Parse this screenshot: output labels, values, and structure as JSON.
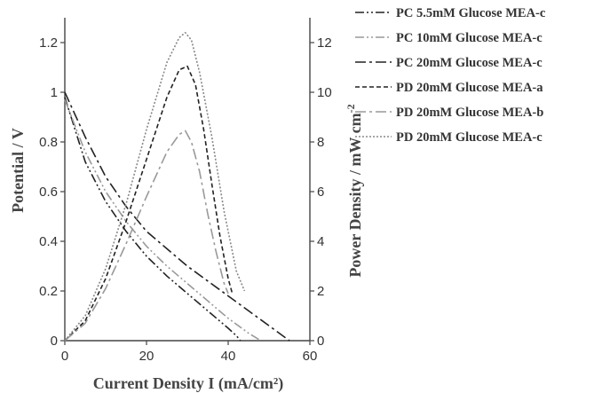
{
  "chart_data": {
    "type": "line",
    "title": "",
    "xlabel": "Current Density I (mA/cm²)",
    "ylabel_left": "Potential / V",
    "ylabel_right_main": "Power Density / mW cm",
    "ylabel_right_sup": "-2",
    "xlim": [
      0,
      60
    ],
    "ylim_left": [
      0,
      1.3
    ],
    "ylim_right": [
      0,
      13
    ],
    "x_ticks": [
      "0",
      "20",
      "40",
      "60"
    ],
    "y_left_ticks": [
      "0",
      "0.2",
      "0.4",
      "0.6",
      "0.8",
      "1",
      "1.2"
    ],
    "y_right_ticks": [
      "0",
      "2",
      "4",
      "6",
      "8",
      "10",
      "12"
    ],
    "grid": false,
    "legend_position": "right",
    "series": [
      {
        "name": "PC 5.5mM Glucose MEA-c",
        "axis": "left",
        "dash": "dashdotdot",
        "color": "#222222",
        "x": [
          0,
          5,
          10,
          15,
          20,
          25,
          30,
          35,
          40,
          42,
          43
        ],
        "y": [
          0.98,
          0.72,
          0.56,
          0.44,
          0.34,
          0.26,
          0.19,
          0.12,
          0.05,
          0.02,
          0.0
        ]
      },
      {
        "name": "PC 10mM Glucose MEA-c",
        "axis": "left",
        "dash": "dashdotdot",
        "color": "#999999",
        "x": [
          0,
          5,
          10,
          15,
          20,
          25,
          30,
          35,
          40,
          45,
          48
        ],
        "y": [
          0.97,
          0.76,
          0.6,
          0.48,
          0.38,
          0.3,
          0.23,
          0.16,
          0.09,
          0.03,
          0.0
        ]
      },
      {
        "name": "PC 20mM Glucose MEA-c",
        "axis": "left",
        "dash": "dashdot",
        "color": "#222222",
        "x": [
          0,
          5,
          10,
          15,
          20,
          25,
          30,
          35,
          40,
          45,
          50,
          55
        ],
        "y": [
          1.0,
          0.82,
          0.66,
          0.54,
          0.44,
          0.37,
          0.3,
          0.24,
          0.18,
          0.12,
          0.06,
          0.0
        ]
      },
      {
        "name": "PD 20mM Glucose MEA-a",
        "axis": "right",
        "dash": "dash",
        "color": "#222222",
        "x": [
          0,
          5,
          10,
          15,
          20,
          25,
          28,
          30,
          32,
          34,
          36,
          38,
          40,
          41
        ],
        "y": [
          0,
          0.8,
          2.5,
          4.8,
          7.3,
          9.8,
          10.9,
          11.05,
          10.3,
          8.5,
          6.3,
          4.2,
          2.5,
          1.9
        ]
      },
      {
        "name": "PD 20mM Glucose MEA-b",
        "axis": "right",
        "dash": "dashdot",
        "color": "#999999",
        "x": [
          0,
          5,
          10,
          15,
          20,
          25,
          28,
          29.5,
          31,
          33,
          35,
          37,
          39,
          40
        ],
        "y": [
          0,
          0.7,
          2.1,
          3.9,
          5.8,
          7.6,
          8.3,
          8.45,
          8.0,
          6.8,
          5.1,
          3.6,
          2.3,
          1.9
        ]
      },
      {
        "name": "PD 20mM Glucose MEA-c",
        "axis": "right",
        "dash": "dot",
        "color": "#888888",
        "x": [
          0,
          5,
          10,
          15,
          20,
          25,
          28,
          29.5,
          31,
          33,
          36,
          39,
          42,
          44
        ],
        "y": [
          0,
          1.0,
          2.9,
          5.5,
          8.5,
          11.2,
          12.2,
          12.4,
          12.1,
          10.8,
          8.2,
          5.2,
          2.8,
          2.0
        ]
      }
    ]
  }
}
